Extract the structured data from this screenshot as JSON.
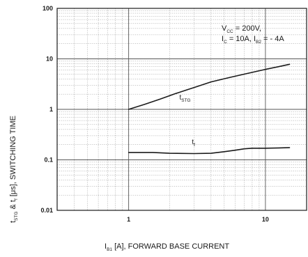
{
  "chart_data": {
    "type": "line",
    "xlabel": "I",
    "xlabel_sub": "B1",
    "xlabel_rest": " [A], FORWARD BASE CURRENT",
    "ylabel_parts": {
      "t1": "t",
      "sub1": "STG",
      "mid": " & t",
      "sub2": "f",
      "rest": " [μs], SWITCHING TIME"
    },
    "x_scale": "log",
    "y_scale": "log",
    "xlim": [
      0.3,
      20
    ],
    "ylim": [
      0.01,
      100
    ],
    "x_ticks": [
      {
        "value": 1,
        "label": "1"
      },
      {
        "value": 10,
        "label": "10"
      }
    ],
    "y_ticks": [
      {
        "value": 100,
        "label": "100"
      },
      {
        "value": 10,
        "label": "10"
      },
      {
        "value": 1,
        "label": "1"
      },
      {
        "value": 0.1,
        "label": "0.1"
      },
      {
        "value": 0.01,
        "label": "0.01"
      }
    ],
    "grid": true,
    "annotation": {
      "line1_a": "V",
      "line1_sub": "CC",
      "line1_b": " = 200V,",
      "line2_a": "I",
      "line2_sub1": "C",
      "line2_b": " = 10A, I",
      "line2_sub2": "B2",
      "line2_c": " = - 4A"
    },
    "series": [
      {
        "label_main": "t",
        "label_sub": "STG",
        "label_at": {
          "x": 2.35,
          "y": 1.55
        },
        "x": [
          1.0,
          1.3,
          1.7,
          2.2,
          3.0,
          4.0,
          5.5,
          7.5,
          10.0,
          12.5,
          15.0
        ],
        "y": [
          1.0,
          1.25,
          1.6,
          2.05,
          2.7,
          3.5,
          4.3,
          5.2,
          6.2,
          7.0,
          7.8
        ]
      },
      {
        "label_main": "t",
        "label_sub": "f",
        "label_at": {
          "x": 2.9,
          "y": 0.205
        },
        "x": [
          1.0,
          1.5,
          2.0,
          3.0,
          4.0,
          5.0,
          6.0,
          7.0,
          8.0,
          10.0,
          12.5,
          15.0
        ],
        "y": [
          0.14,
          0.14,
          0.135,
          0.133,
          0.135,
          0.145,
          0.155,
          0.165,
          0.17,
          0.17,
          0.172,
          0.175
        ]
      }
    ]
  }
}
